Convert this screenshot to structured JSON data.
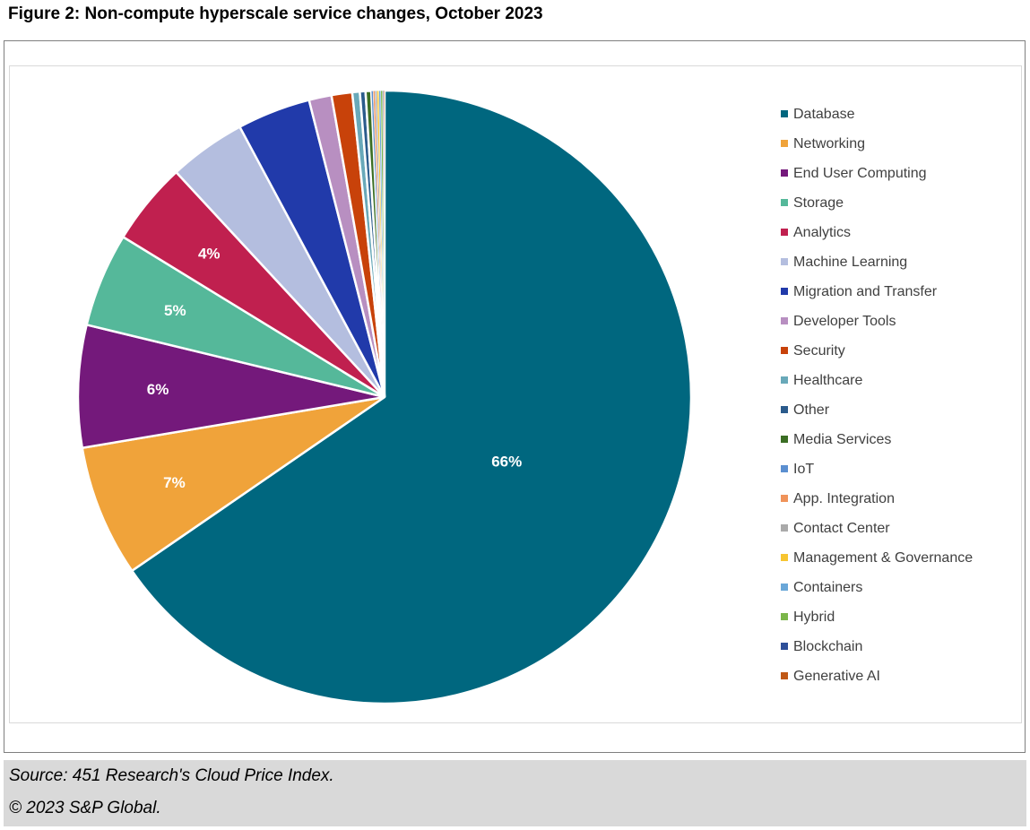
{
  "figure_title": "Figure 2: Non-compute hyperscale service changes, October 2023",
  "source": {
    "line1": "Source: 451 Research's Cloud Price Index.",
    "line2": "© 2023 S&P Global."
  },
  "chart_data": {
    "type": "pie",
    "title": "Figure 2: Non-compute hyperscale service changes, October 2023",
    "start": "top",
    "direction": "clockwise",
    "legend_position": "right",
    "slices": [
      {
        "name": "Database",
        "value": 66.0,
        "label": "66%",
        "color": "#00677f"
      },
      {
        "name": "Networking",
        "value": 7.0,
        "label": "7%",
        "color": "#f0a33a"
      },
      {
        "name": "End User Computing",
        "value": 6.5,
        "label": "6%",
        "color": "#74197b"
      },
      {
        "name": "Storage",
        "value": 5.0,
        "label": "5%",
        "color": "#55b89a"
      },
      {
        "name": "Analytics",
        "value": 4.4,
        "label": "4%",
        "color": "#c0204f"
      },
      {
        "name": "Machine Learning",
        "value": 4.1,
        "label": "",
        "color": "#b4bedf"
      },
      {
        "name": "Migration and Transfer",
        "value": 3.9,
        "label": "",
        "color": "#213aaa"
      },
      {
        "name": "Developer Tools",
        "value": 1.2,
        "label": "",
        "color": "#b88fc1"
      },
      {
        "name": "Security",
        "value": 1.1,
        "label": "",
        "color": "#c8420a"
      },
      {
        "name": "Healthcare",
        "value": 0.4,
        "label": "",
        "color": "#69a9b9"
      },
      {
        "name": "Other",
        "value": 0.3,
        "label": "",
        "color": "#2b5b8c"
      },
      {
        "name": "Media Services",
        "value": 0.3,
        "label": "",
        "color": "#3b6e24"
      },
      {
        "name": "IoT",
        "value": 0.1,
        "label": "",
        "color": "#5b8fd0"
      },
      {
        "name": "App. Integration",
        "value": 0.1,
        "label": "",
        "color": "#f0935a"
      },
      {
        "name": "Contact Center",
        "value": 0.1,
        "label": "",
        "color": "#aaaaaa"
      },
      {
        "name": "Management & Governance",
        "value": 0.1,
        "label": "",
        "color": "#f7c531"
      },
      {
        "name": "Containers",
        "value": 0.1,
        "label": "",
        "color": "#6aa7d8"
      },
      {
        "name": "Hybrid",
        "value": 0.1,
        "label": "",
        "color": "#7bb64a"
      },
      {
        "name": "Blockchain",
        "value": 0.05,
        "label": "",
        "color": "#2e4f99"
      },
      {
        "name": "Generative AI",
        "value": 0.05,
        "label": "",
        "color": "#c05816"
      }
    ]
  }
}
